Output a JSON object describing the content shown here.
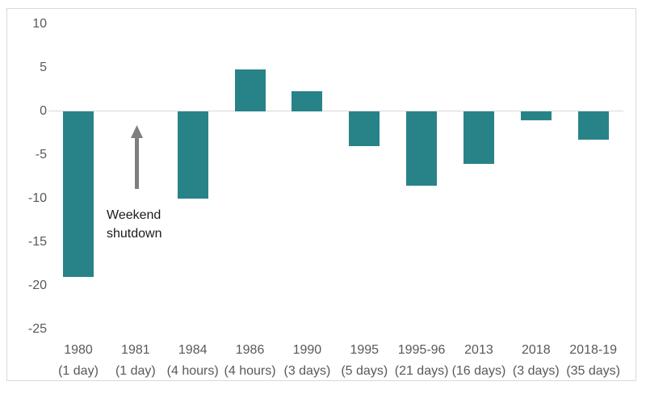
{
  "chart_data": {
    "type": "bar",
    "title": "",
    "xlabel": "",
    "ylabel": "",
    "categories": [
      "1980",
      "1981",
      "1984",
      "1986",
      "1990",
      "1995",
      "1995-96",
      "2013",
      "2018",
      "2018-19"
    ],
    "category_durations": [
      "(1 day)",
      "(1 day)",
      "(4 hours)",
      "(4 hours)",
      "(3 days)",
      "(5 days)",
      "(21 days)",
      "(16 days)",
      "(3 days)",
      "(35 days)"
    ],
    "values": [
      -19,
      null,
      -10,
      4.8,
      2.3,
      -4,
      -8.5,
      -6,
      -1,
      -3.2
    ],
    "yticks": [
      10,
      5,
      0,
      -5,
      -10,
      -15,
      -20,
      -25
    ],
    "ylim": [
      -25,
      10
    ],
    "grid": "zero-line-only",
    "legend": "none",
    "annotation": {
      "line1": "Weekend",
      "line2": "shutdown",
      "target_category": "1981",
      "arrow_direction": "up"
    },
    "colors": {
      "bar": "#288388",
      "axis_text": "#595959",
      "annotation_text": "#1a1a1a",
      "arrow": "#7f7f7f",
      "gridline": "#d9d9d9",
      "frame_border": "#d9d9d9",
      "background": "#ffffff"
    }
  }
}
